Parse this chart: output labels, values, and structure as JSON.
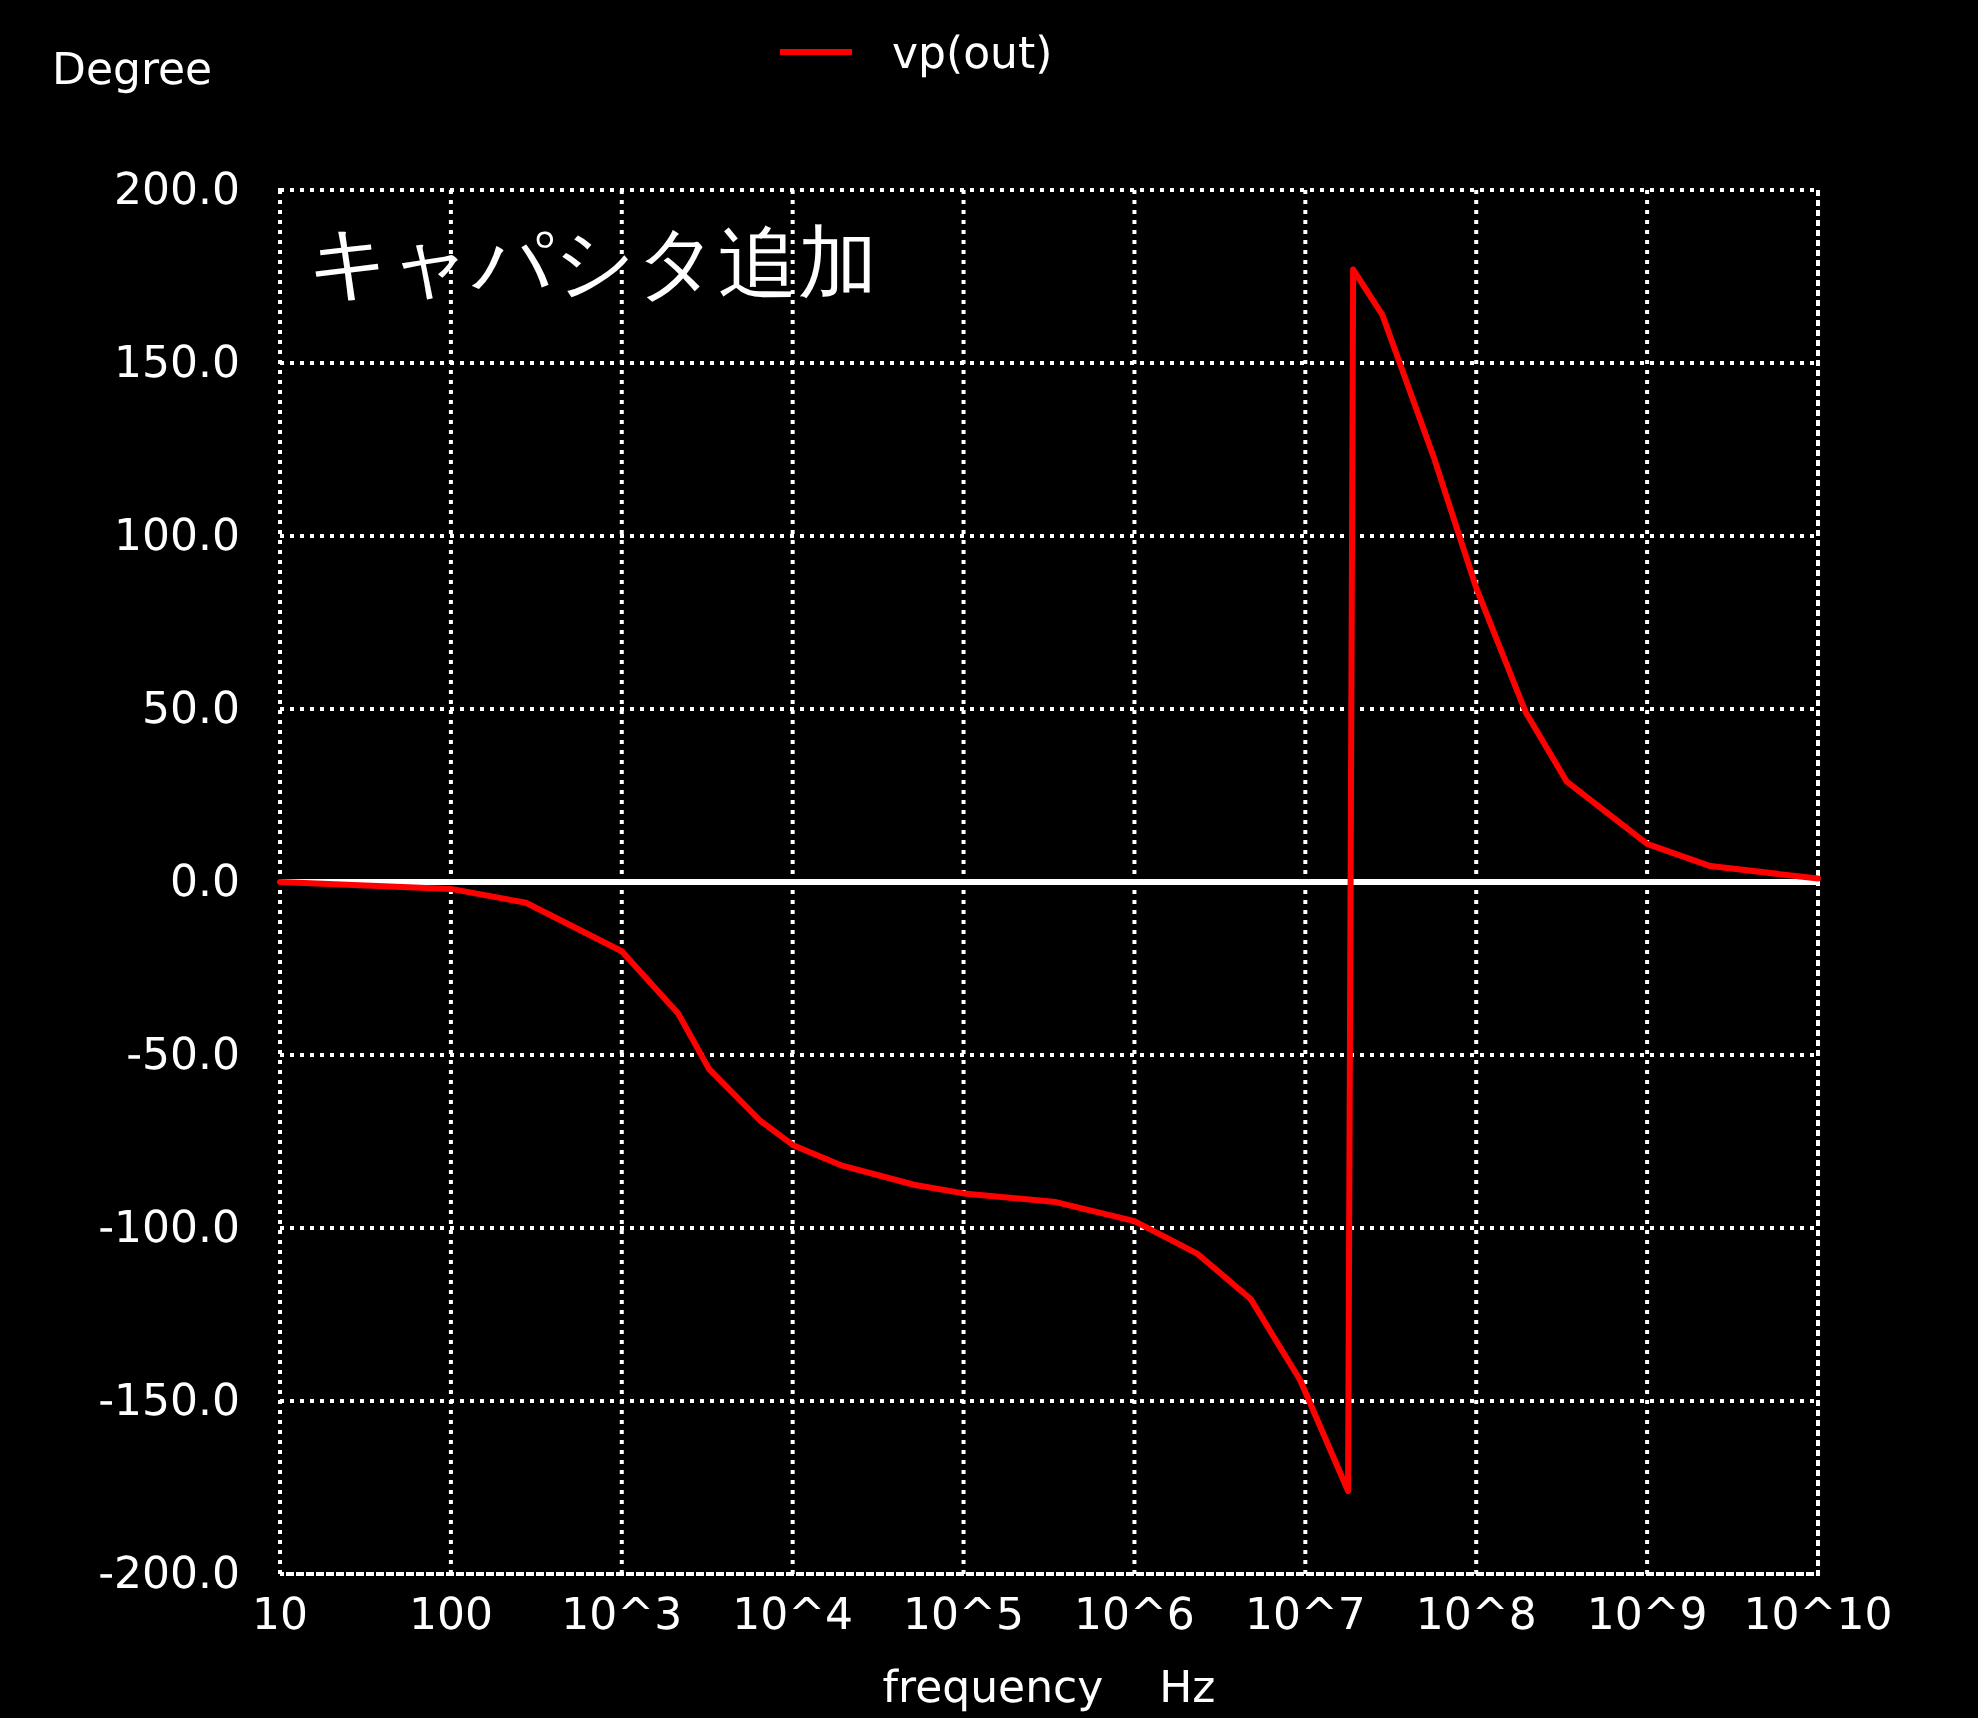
{
  "chart_data": {
    "type": "line",
    "annotations": [
      "キャパシタ追加"
    ],
    "xlabel": "frequency    Hz",
    "ylabel": "Degree",
    "log": "x",
    "grid": true,
    "legend": "top",
    "marker": "none",
    "line_style": "solid",
    "xlim": [
      10,
      10000000000
    ],
    "ylim": [
      -200,
      200
    ],
    "xticks": [
      10,
      100,
      {
        "value": 1000,
        "label": "10^3"
      },
      {
        "value": 10000,
        "label": "10^4"
      },
      {
        "value": 100000,
        "label": "10^5"
      },
      {
        "value": 1000000,
        "label": "10^6"
      },
      {
        "value": 10000000,
        "label": "10^7"
      },
      {
        "value": 100000000,
        "label": "10^8"
      },
      {
        "value": 1000000000,
        "label": "10^9"
      },
      {
        "value": 10000000000,
        "label": "10^10"
      }
    ],
    "yticks": [
      {
        "value": 200,
        "label": "200.0"
      },
      {
        "value": 150,
        "label": "150.0"
      },
      {
        "value": 100,
        "label": "100.0"
      },
      {
        "value": 50,
        "label": "50.0"
      },
      {
        "value": 0,
        "label": "0.0"
      },
      {
        "value": -50,
        "label": "-50.0"
      },
      {
        "value": -100,
        "label": "-100.0"
      },
      {
        "value": -150,
        "label": "-150.0"
      },
      {
        "value": -200,
        "label": "-200.0"
      }
    ],
    "ref_lines": [
      {
        "axis": "y",
        "value": 0,
        "color": "#ffffff",
        "line_style": "solid"
      }
    ],
    "series": [
      {
        "name": "vp(out)",
        "color": "#ff0000",
        "x": [
          10,
          100,
          275,
          1000,
          2138,
          3236,
          6457,
          10000,
          19500,
          51300,
          100000,
          347000,
          1000000,
          2344000,
          4786000,
          9333000,
          17780000,
          18200000,
          18620000,
          19050000,
          28180000,
          56230000,
          100000000,
          195000000,
          338800000,
          1000000000,
          2344000000,
          10000000000
        ],
        "values": [
          0,
          -2,
          -6,
          -20,
          -38,
          -54,
          -69,
          -76,
          -82,
          -87.5,
          -90,
          -92.5,
          -98,
          -107.5,
          -120.5,
          -144,
          -176,
          -58,
          61,
          177,
          164,
          123,
          85,
          49,
          29,
          11,
          4.6,
          1
        ]
      }
    ]
  }
}
